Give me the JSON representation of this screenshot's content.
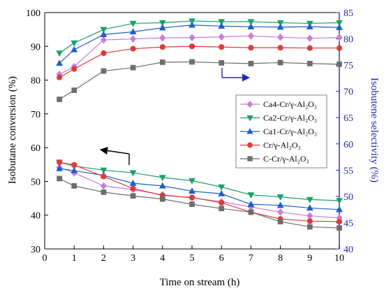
{
  "chart_data": {
    "type": "line",
    "title": "",
    "xlabel": "Time on stream (h)",
    "ylabel_left": "Isobutane conversion (%)",
    "ylabel_right": "Isobutene selectivity (%)",
    "xlim": [
      0,
      10
    ],
    "ylim_left": [
      30,
      100
    ],
    "ylim_right": [
      40,
      85
    ],
    "x_ticks": [
      "0",
      "1",
      "2",
      "3",
      "4",
      "5",
      "6",
      "7",
      "8",
      "9",
      "10"
    ],
    "y_left_ticks": [
      "30",
      "40",
      "50",
      "60",
      "70",
      "80",
      "90",
      "100"
    ],
    "y_right_ticks": [
      "40",
      "45",
      "50",
      "55",
      "60",
      "65",
      "70",
      "75",
      "80",
      "85"
    ],
    "grid": false,
    "legend_position": "center-right",
    "x": [
      0.5,
      1,
      2,
      3,
      4,
      5,
      6,
      7,
      8,
      9,
      10
    ],
    "series": [
      {
        "name": "Ca4-Cr/γ-Al₂O₃",
        "marker": "diamond",
        "color": "#c77ddb",
        "axis": "left",
        "values": [
          81.7,
          84.0,
          91.9,
          92.2,
          92.5,
          92.6,
          92.8,
          93.1,
          92.7,
          92.4,
          92.6
        ]
      },
      {
        "name": "Ca2-Cr/γ-Al₂O₃",
        "marker": "triangle-down",
        "color": "#1aa16a",
        "axis": "left",
        "values": [
          88.0,
          91.0,
          95.0,
          96.8,
          97.0,
          97.5,
          97.3,
          97.3,
          97.0,
          96.8,
          97.0
        ]
      },
      {
        "name": "Ca1-Cr/γ-Al₂O₃",
        "marker": "triangle-up",
        "color": "#1f5fc8",
        "axis": "left",
        "values": [
          85.0,
          89.0,
          93.5,
          94.3,
          95.5,
          96.3,
          96.0,
          95.8,
          95.7,
          95.8,
          95.6
        ]
      },
      {
        "name": "Cr/γ-Al₂O₃",
        "marker": "circle",
        "color": "#e03a3a",
        "axis": "left",
        "values": [
          80.8,
          83.3,
          88.0,
          89.3,
          89.8,
          90.0,
          89.8,
          89.6,
          89.6,
          89.5,
          89.5
        ]
      },
      {
        "name": "C-Cr/γ-Al₂O₃",
        "marker": "square",
        "color": "#6e6e6e",
        "axis": "left",
        "values": [
          74.3,
          77.0,
          82.7,
          83.7,
          85.3,
          85.4,
          85.1,
          84.9,
          85.2,
          84.9,
          84.7
        ]
      },
      {
        "name": "Ca4-Cr/γ-Al₂O₃",
        "marker": "diamond",
        "color": "#c77ddb",
        "axis": "right",
        "values": [
          55.5,
          54.5,
          52.0,
          51.3,
          50.3,
          49.7,
          49.0,
          48.0,
          47.0,
          46.3,
          45.9
        ]
      },
      {
        "name": "Ca2-Cr/γ-Al₂O₃",
        "marker": "triangle-down",
        "color": "#1aa16a",
        "axis": "right",
        "values": [
          56.5,
          55.8,
          55.0,
          54.5,
          53.6,
          53.0,
          51.8,
          50.3,
          49.9,
          49.4,
          49.2
        ]
      },
      {
        "name": "Ca1-Cr/γ-Al₂O₃",
        "marker": "triangle-up",
        "color": "#1f5fc8",
        "axis": "right",
        "values": [
          55.3,
          54.9,
          54.0,
          52.5,
          52.0,
          51.0,
          50.5,
          48.5,
          48.3,
          47.8,
          47.5
        ]
      },
      {
        "name": "Cr/γ-Al₂O₃",
        "marker": "circle",
        "color": "#e03a3a",
        "axis": "right",
        "values": [
          56.5,
          56.0,
          53.8,
          51.5,
          50.2,
          49.8,
          48.8,
          47.0,
          45.7,
          45.3,
          45.2
        ]
      },
      {
        "name": "C-Cr/γ-Al₂O₃",
        "marker": "square",
        "color": "#6e6e6e",
        "axis": "right",
        "values": [
          53.4,
          52.0,
          50.8,
          50.1,
          49.5,
          48.5,
          47.7,
          47.0,
          45.2,
          44.2,
          44.0
        ]
      }
    ],
    "colors": {
      "left_axis": "#000000",
      "right_axis": "#1f2aa8",
      "annotation_left_arrow": "#000000",
      "annotation_right_arrow": "#1f2aa8"
    }
  }
}
